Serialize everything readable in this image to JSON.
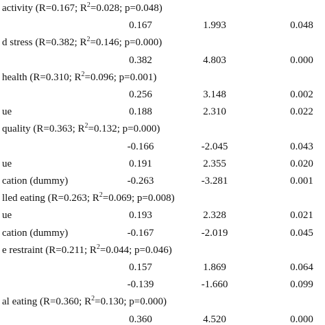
{
  "table": {
    "rows": [
      {
        "heading": [
          "activity (R=0.167; R",
          "2",
          "=0.028; p=0.048)"
        ]
      },
      {
        "cells": [
          "0.167",
          "1.993",
          "0.048"
        ]
      },
      {
        "heading": [
          "d stress (R=0.382; R",
          "2",
          "=0.146; p=0.000)"
        ]
      },
      {
        "cells": [
          "0.382",
          "4.803",
          "0.000"
        ]
      },
      {
        "heading": [
          "health (R=0.310; R",
          "2",
          "=0.096; p=0.001)"
        ]
      },
      {
        "cells": [
          "0.256",
          "3.148",
          "0.002"
        ]
      },
      {
        "label": "ue",
        "cells": [
          "0.188",
          "2.310",
          "0.022"
        ]
      },
      {
        "heading": [
          "quality (R=0.363; R",
          "2",
          "=0.132; p=0.000)"
        ]
      },
      {
        "cells": [
          "-0.166",
          "-2.045",
          "0.043"
        ]
      },
      {
        "label": "ue",
        "cells": [
          "0.191",
          "2.355",
          "0.020"
        ]
      },
      {
        "label": "cation (dummy)",
        "cells": [
          "-0.263",
          "-3.281",
          "0.001"
        ]
      },
      {
        "heading": [
          "lled eating (R=0.263; R",
          "2",
          "=0.069; p=0.008)"
        ]
      },
      {
        "label": "ue",
        "cells": [
          "0.193",
          "2.328",
          "0.021"
        ]
      },
      {
        "label": "cation (dummy)",
        "cells": [
          "-0.167",
          "-2.019",
          "0.045"
        ]
      },
      {
        "heading": [
          "e restraint (R=0.211; R",
          "2",
          "=0.044; p=0.046)"
        ]
      },
      {
        "cells": [
          "0.157",
          "1.869",
          "0.064"
        ]
      },
      {
        "cells": [
          "-0.139",
          "-1.660",
          "0.099"
        ]
      },
      {
        "heading": [
          "al eating (R=0.360; R",
          "2",
          "=0.130; p=0.000)"
        ]
      },
      {
        "cells": [
          "0.360",
          "4.520",
          "0.000"
        ]
      }
    ]
  }
}
